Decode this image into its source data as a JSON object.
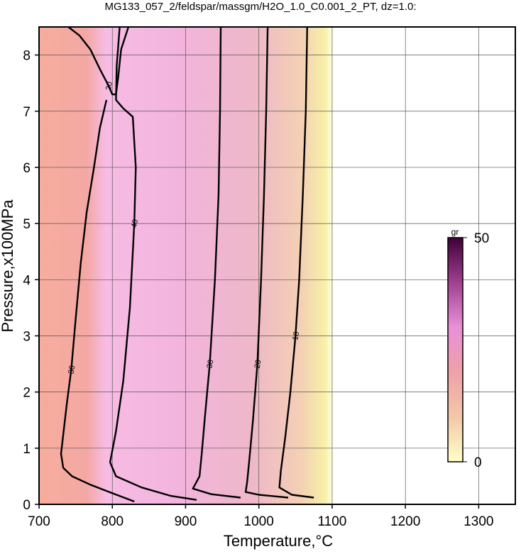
{
  "chart_data": {
    "type": "contour",
    "title": "MG133_057_2/feldspar/massgm/H2O_1.0_C0.001_2_PT, dz=1.0:",
    "x_label": "Temperature,°C",
    "y_label": "Pressure,x100MPa",
    "xlim": [
      700,
      1350
    ],
    "ylim": [
      0,
      8.5
    ],
    "xticks": [
      700,
      800,
      900,
      1000,
      1100,
      1200,
      1300
    ],
    "yticks": [
      0,
      1,
      2,
      3,
      4,
      5,
      6,
      7,
      8
    ],
    "grid": true,
    "colorbar": {
      "label": "gr",
      "lim": [
        0,
        50
      ],
      "ticks": [
        0,
        50
      ],
      "colors": [
        "#ffffc8",
        "#f2c8a8",
        "#f0a0a8",
        "#e890d8",
        "#a04090",
        "#400038"
      ]
    },
    "contours": [
      {
        "level": 10,
        "x": [
          1066,
          1064,
          1060,
          1055,
          1050,
          1043,
          1036,
          1030,
          1028,
          1045,
          1075
        ],
        "y": [
          8.5,
          7,
          5.5,
          4,
          3,
          2,
          1.2,
          0.6,
          0.3,
          0.17,
          0.12
        ]
      },
      {
        "level": 20,
        "x": [
          1012,
          1010,
          1007,
          1003,
          998,
          992,
          987,
          984,
          982,
          1000,
          1040
        ],
        "y": [
          8.5,
          7,
          5.5,
          4,
          2.5,
          1.5,
          0.8,
          0.4,
          0.22,
          0.17,
          0.12
        ]
      },
      {
        "level": 30,
        "x": [
          948,
          947,
          945,
          940,
          933,
          926,
          922,
          919,
          910,
          935,
          975
        ],
        "y": [
          8.5,
          7,
          5.5,
          4,
          2.5,
          1.5,
          0.9,
          0.5,
          0.28,
          0.18,
          0.12
        ]
      },
      {
        "level": 40,
        "x": [
          810,
          806,
          805,
          815,
          828,
          832,
          830,
          824,
          815,
          805,
          797,
          805,
          840,
          880,
          915
        ],
        "y": [
          8.5,
          7.8,
          7.2,
          7.05,
          6.9,
          6,
          5,
          3.5,
          2.2,
          1.3,
          0.75,
          0.5,
          0.3,
          0.15,
          0.08
        ]
      },
      {
        "level": 30,
        "x": [
          792,
          783,
          775,
          765,
          757,
          750,
          744,
          738,
          730,
          733,
          745,
          770,
          800,
          830
        ],
        "y": [
          7.2,
          6.7,
          6,
          5.2,
          4.3,
          3.3,
          2.4,
          1.8,
          0.9,
          0.65,
          0.5,
          0.35,
          0.2,
          0.05
        ]
      },
      {
        "level": 20,
        "x": [
          740,
          755,
          770,
          783,
          795,
          800,
          805,
          808,
          812,
          822
        ],
        "y": [
          8.5,
          8.35,
          8.1,
          7.75,
          7.45,
          7.3,
          7.3,
          7.6,
          8.1,
          8.5
        ]
      }
    ]
  }
}
